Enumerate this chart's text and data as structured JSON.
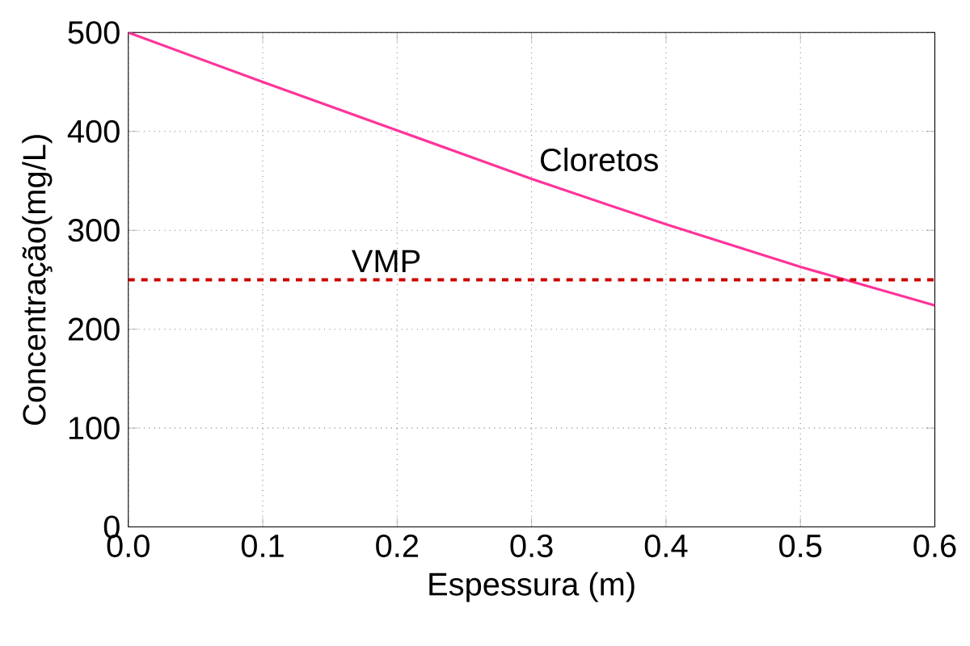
{
  "chart_data": {
    "type": "line",
    "xlabel": "Espessura (m)",
    "ylabel": "Concentração(mg/L)",
    "x": [
      0,
      0.1,
      0.2,
      0.3,
      0.4,
      0.5,
      0.6
    ],
    "series": [
      {
        "name": "Cloretos",
        "color": "#ff3399",
        "values": [
          500,
          450,
          401,
          352,
          306,
          263,
          224
        ]
      }
    ],
    "ref_lines": [
      {
        "axis": "y",
        "value": 250,
        "label": "VMP",
        "color": "#cc0000",
        "line_style": "dashed"
      }
    ],
    "xlim": [
      0,
      0.6
    ],
    "ylim": [
      0,
      500
    ],
    "xticks": [
      {
        "value": 0,
        "label": "0.0"
      },
      0.1,
      0.2,
      0.3,
      0.4,
      0.5,
      0.6
    ],
    "yticks": [
      0,
      100,
      200,
      300,
      400,
      500
    ],
    "grid": true,
    "line_style": "solid",
    "marker": "none"
  }
}
